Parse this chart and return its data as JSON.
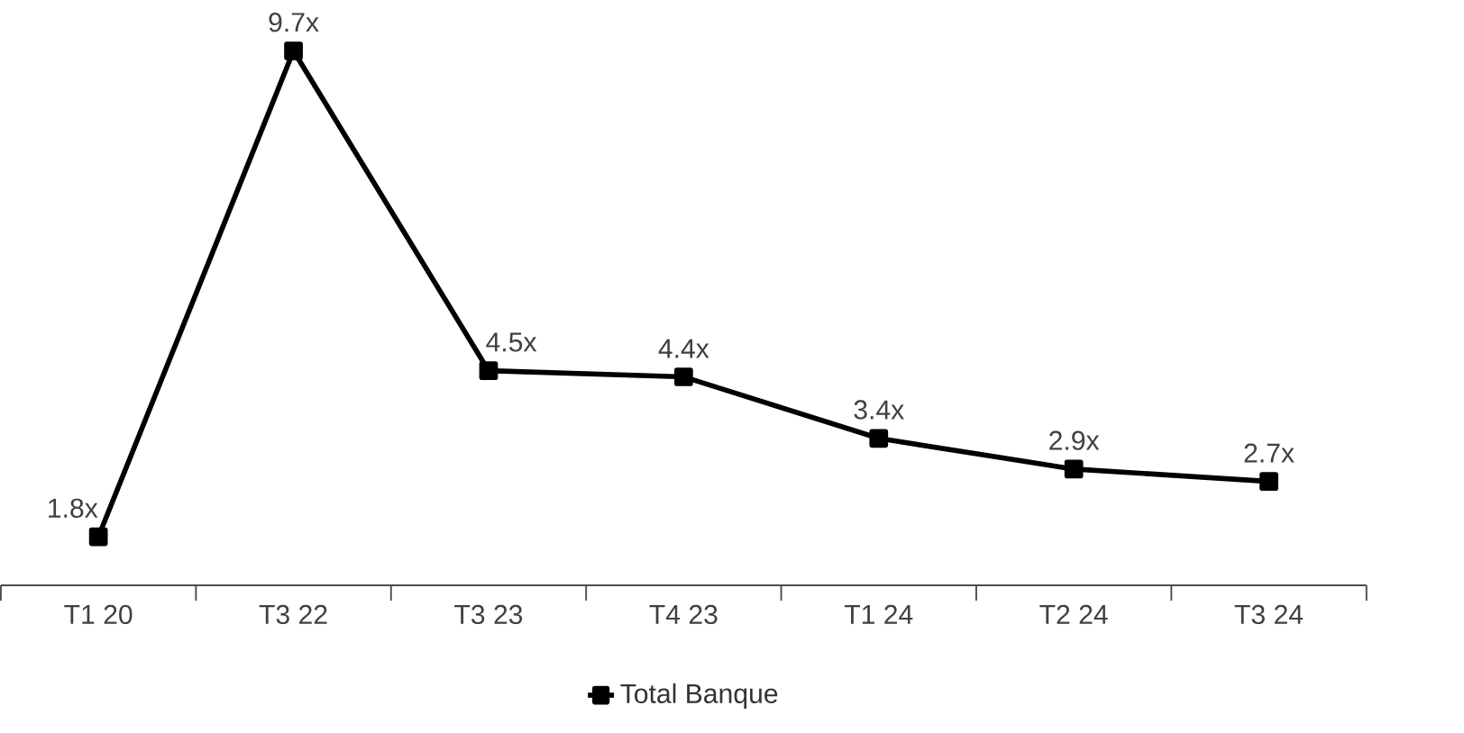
{
  "chart_data": {
    "type": "line",
    "categories": [
      "T1 20",
      "T3 22",
      "T3 23",
      "T4 23",
      "T1 24",
      "T2 24",
      "T3 24"
    ],
    "series": [
      {
        "name": "Total Banque",
        "color": "#000000",
        "values": [
          1.8,
          9.7,
          4.5,
          4.4,
          3.4,
          2.9,
          2.7
        ],
        "value_labels": [
          "1.8x",
          "9.7x",
          "4.5x",
          "4.4x",
          "3.4x",
          "2.9x",
          "2.7x"
        ]
      }
    ],
    "marker": "square",
    "line_style": "solid",
    "legend": "bottom"
  }
}
